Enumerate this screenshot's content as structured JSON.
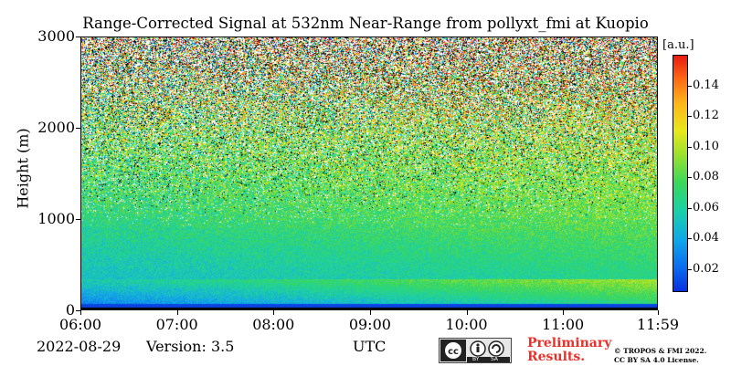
{
  "chart_data": {
    "type": "heatmap",
    "title": "Range-Corrected Signal at 532nm Near-Range from pollyxt_fmi at Kuopio",
    "xlabel": "UTC",
    "ylabel": "Height (m)",
    "x_ticks": [
      "06:00",
      "07:00",
      "08:00",
      "09:00",
      "10:00",
      "11:00",
      "11:59"
    ],
    "x_range": [
      "06:00",
      "11:59"
    ],
    "y_ticks": [
      0,
      1000,
      2000,
      3000
    ],
    "y_range": [
      0,
      3000
    ],
    "colorbar": {
      "unit": "[a.u.]",
      "ticks": [
        0.02,
        0.04,
        0.06,
        0.08,
        0.1,
        0.12,
        0.14
      ],
      "tick_labels": [
        "0.02",
        "0.04",
        "0.06",
        "0.08",
        "0.10",
        "0.12",
        "0.14"
      ],
      "range": [
        0.005,
        0.16
      ],
      "colormap": "jet-like (blue-green-yellow-red)"
    }
  },
  "footer": {
    "date": "2022-08-29",
    "version": "Version: 3.5",
    "xlabel": "UTC",
    "preliminary_line1": "Preliminary",
    "preliminary_line2": "Results.",
    "copyright_line1": "© TROPOS & FMI 2022.",
    "copyright_line2": "CC BY SA 4.0 License.",
    "license_badge": {
      "by": "BY",
      "sa": "SA"
    }
  },
  "colors": {
    "preliminary": "#e8312a"
  }
}
